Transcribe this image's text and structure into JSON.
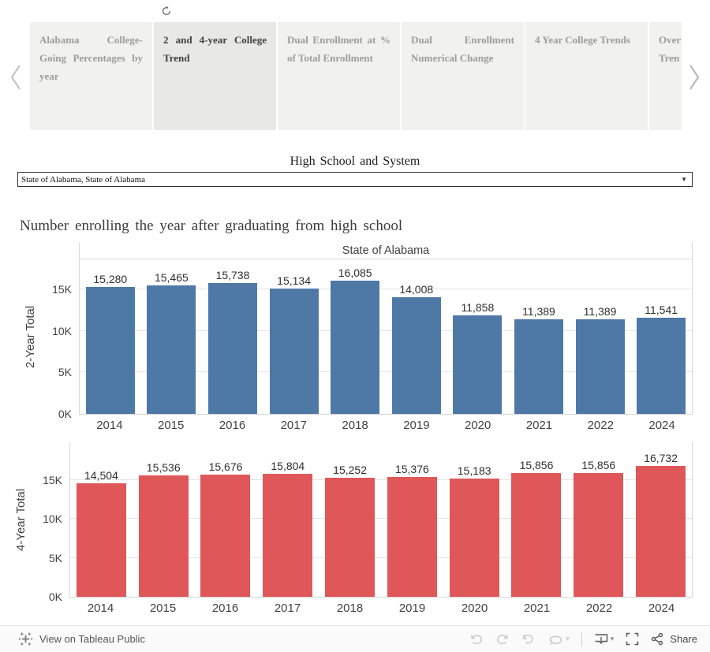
{
  "tab_bar": {
    "tabs": [
      {
        "label": "Alabama College-Going Percentages by year",
        "active": false
      },
      {
        "label": "2 and 4-year College Trend",
        "active": true
      },
      {
        "label": "Dual Enrollment at % of Total Enrollment",
        "active": false
      },
      {
        "label": "Dual Enrollment Numerical Change",
        "active": false
      },
      {
        "label": "4 Year College Trends",
        "active": false
      },
      {
        "label": "Over\nTren",
        "active": false,
        "truncated": true
      }
    ]
  },
  "filter": {
    "label": "High School and System",
    "value": "State of Alabama, State of Alabama"
  },
  "heading": "Number enrolling the year after graduating from high school",
  "chart_data": [
    {
      "type": "bar",
      "title": "State of Alabama",
      "ylabel": "2-Year Total",
      "categories": [
        "2014",
        "2015",
        "2016",
        "2017",
        "2018",
        "2019",
        "2020",
        "2021",
        "2022",
        "2024"
      ],
      "values": [
        15280,
        15465,
        15738,
        15134,
        16085,
        14008,
        11858,
        11389,
        11389,
        11541
      ],
      "value_labels": [
        "15,280",
        "15,465",
        "15,738",
        "15,134",
        "16,085",
        "14,008",
        "11,858",
        "11,389",
        "11,389",
        "11,541"
      ],
      "yticks": [
        {
          "value": 0,
          "label": "0K"
        },
        {
          "value": 5000,
          "label": "5K"
        },
        {
          "value": 10000,
          "label": "10K"
        },
        {
          "value": 15000,
          "label": "15K"
        }
      ],
      "ylim": [
        0,
        18600
      ],
      "bar_color": "#4e79a7",
      "grid": true,
      "legend": "none"
    },
    {
      "type": "bar",
      "title": "",
      "ylabel": "4-Year Total",
      "categories": [
        "2014",
        "2015",
        "2016",
        "2017",
        "2018",
        "2019",
        "2020",
        "2021",
        "2022",
        "2024"
      ],
      "values": [
        14504,
        15536,
        15676,
        15804,
        15252,
        15376,
        15183,
        15856,
        15856,
        16732
      ],
      "value_labels": [
        "14,504",
        "15,536",
        "15,676",
        "15,804",
        "15,252",
        "15,376",
        "15,183",
        "15,856",
        "15,856",
        "16,732"
      ],
      "yticks": [
        {
          "value": 0,
          "label": "0K"
        },
        {
          "value": 5000,
          "label": "5K"
        },
        {
          "value": 10000,
          "label": "10K"
        },
        {
          "value": 15000,
          "label": "15K"
        }
      ],
      "ylim": [
        0,
        19800
      ],
      "bar_color": "#e05759",
      "grid": true,
      "legend": "none"
    }
  ],
  "toolbar": {
    "view_on_label": "View on Tableau Public",
    "share_label": "Share",
    "icons": [
      "tableau-logo",
      "undo",
      "redo",
      "reset",
      "refresh",
      "download",
      "fullscreen",
      "share"
    ]
  },
  "colors": {
    "bar_blue": "#4e79a7",
    "bar_red": "#e05759",
    "tab_bg": "#f1f1ef",
    "active_tab_bg": "#e8e8e4"
  }
}
